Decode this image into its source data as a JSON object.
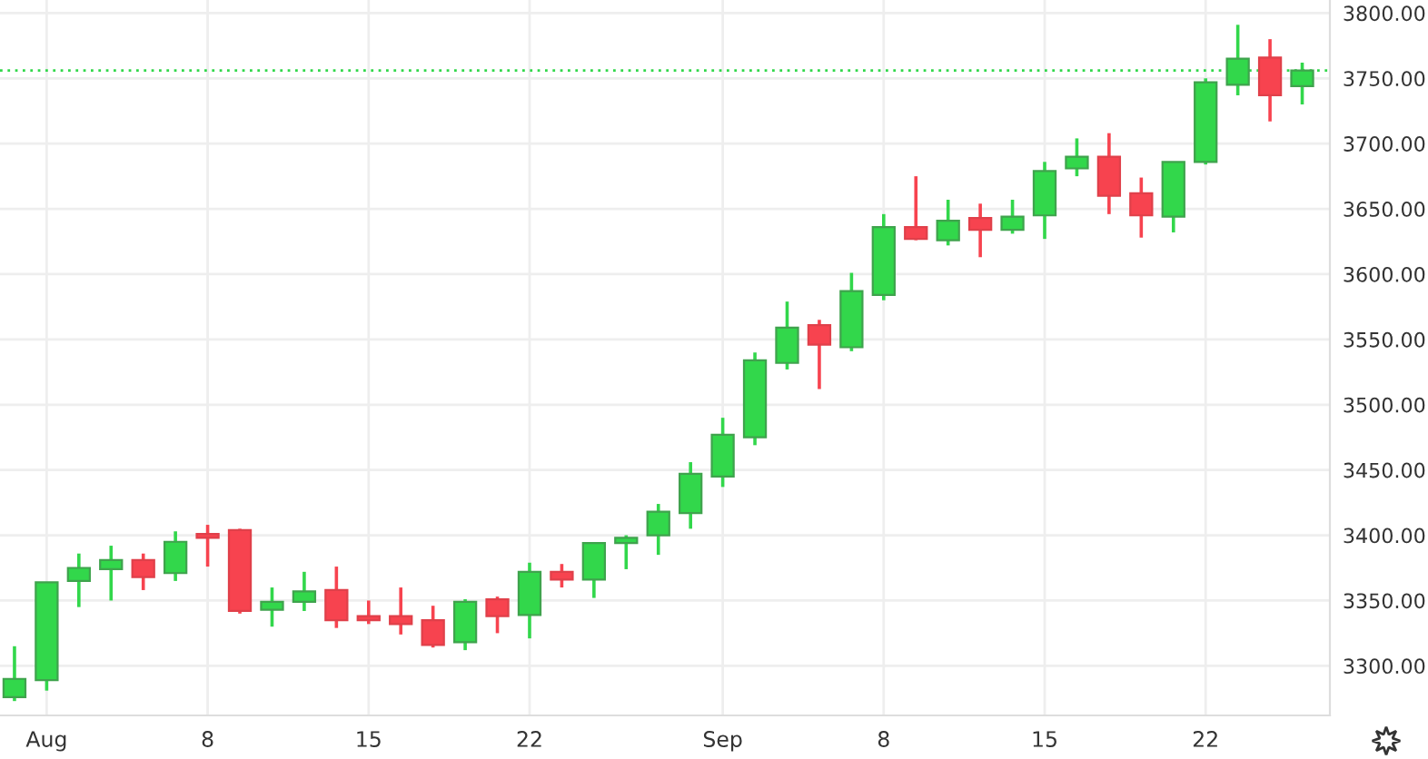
{
  "chart_data": {
    "type": "candlestick",
    "categories": [
      null,
      "Aug",
      null,
      null,
      null,
      null,
      "8",
      null,
      null,
      null,
      null,
      "15",
      null,
      null,
      null,
      null,
      "22",
      null,
      null,
      null,
      null,
      null,
      "Sep",
      null,
      null,
      null,
      null,
      "8",
      null,
      null,
      null,
      null,
      "15",
      null,
      null,
      null,
      null,
      "22",
      null,
      null,
      null
    ],
    "ohlc": [
      [
        3276,
        3315,
        3273,
        3290
      ],
      [
        3289,
        3364,
        3281,
        3364
      ],
      [
        3365,
        3386,
        3345,
        3375
      ],
      [
        3374,
        3392,
        3350,
        3381
      ],
      [
        3381,
        3386,
        3358,
        3368
      ],
      [
        3371,
        3403,
        3365,
        3395
      ],
      [
        3401,
        3408,
        3376,
        3398
      ],
      [
        3404,
        3405,
        3340,
        3342
      ],
      [
        3343,
        3360,
        3330,
        3349
      ],
      [
        3349,
        3372,
        3342,
        3357
      ],
      [
        3358,
        3376,
        3329,
        3335
      ],
      [
        3338,
        3350,
        3332,
        3335
      ],
      [
        3338,
        3360,
        3324,
        3332
      ],
      [
        3335,
        3346,
        3314,
        3316
      ],
      [
        3318,
        3351,
        3312,
        3349
      ],
      [
        3351,
        3353,
        3325,
        3338
      ],
      [
        3339,
        3379,
        3321,
        3372
      ],
      [
        3372,
        3378,
        3360,
        3366
      ],
      [
        3366,
        3394,
        3352,
        3394
      ],
      [
        3394,
        3400,
        3374,
        3398
      ],
      [
        3400,
        3424,
        3385,
        3418
      ],
      [
        3417,
        3456,
        3405,
        3447
      ],
      [
        3445,
        3490,
        3437,
        3477
      ],
      [
        3475,
        3540,
        3469,
        3534
      ],
      [
        3532,
        3579,
        3527,
        3559
      ],
      [
        3561,
        3565,
        3512,
        3546
      ],
      [
        3544,
        3601,
        3541,
        3587
      ],
      [
        3584,
        3646,
        3580,
        3636
      ],
      [
        3636,
        3675,
        3626,
        3627
      ],
      [
        3626,
        3657,
        3622,
        3641
      ],
      [
        3643,
        3654,
        3613,
        3634
      ],
      [
        3634,
        3657,
        3631,
        3644
      ],
      [
        3645,
        3686,
        3627,
        3679
      ],
      [
        3681,
        3704,
        3675,
        3690
      ],
      [
        3690,
        3708,
        3646,
        3660
      ],
      [
        3662,
        3674,
        3628,
        3645
      ],
      [
        3644,
        3686,
        3632,
        3686
      ],
      [
        3686,
        3750,
        3684,
        3747
      ],
      [
        3745,
        3791,
        3737,
        3765
      ],
      [
        3766,
        3780,
        3717,
        3737
      ],
      [
        3744,
        3762,
        3730,
        3756
      ]
    ],
    "colors": [
      "#32d74b",
      "#32d74b",
      "#32d74b",
      "#32d74b",
      "#f7434f",
      "#32d74b",
      "#f7434f",
      "#f7434f",
      "#32d74b",
      "#32d74b",
      "#f7434f",
      "#f7434f",
      "#f7434f",
      "#f7434f",
      "#32d74b",
      "#f7434f",
      "#32d74b",
      "#f7434f",
      "#32d74b",
      "#32d74b",
      "#32d74b",
      "#32d74b",
      "#32d74b",
      "#32d74b",
      "#32d74b",
      "#f7434f",
      "#32d74b",
      "#32d74b",
      "#f7434f",
      "#32d74b",
      "#f7434f",
      "#32d74b",
      "#32d74b",
      "#32d74b",
      "#f7434f",
      "#f7434f",
      "#32d74b",
      "#32d74b",
      "#32d74b",
      "#f7434f",
      "#32d74b"
    ],
    "ylim": [
      3262,
      3810
    ],
    "yticks": [
      {
        "value": 3300,
        "label": "3300.00"
      },
      {
        "value": 3350,
        "label": "3350.00"
      },
      {
        "value": 3400,
        "label": "3400.00"
      },
      {
        "value": 3450,
        "label": "3450.00"
      },
      {
        "value": 3500,
        "label": "3500.00"
      },
      {
        "value": 3550,
        "label": "3550.00"
      },
      {
        "value": 3600,
        "label": "3600.00"
      },
      {
        "value": 3650,
        "label": "3650.00"
      },
      {
        "value": 3700,
        "label": "3700.00"
      },
      {
        "value": 3750,
        "label": "3750.00"
      },
      {
        "value": 3800,
        "label": "3800.00"
      }
    ],
    "ref_lines": [
      {
        "axis": "y",
        "value": 3756,
        "color": "#32d74b",
        "line_style": "dotted"
      }
    ],
    "grid": true
  }
}
